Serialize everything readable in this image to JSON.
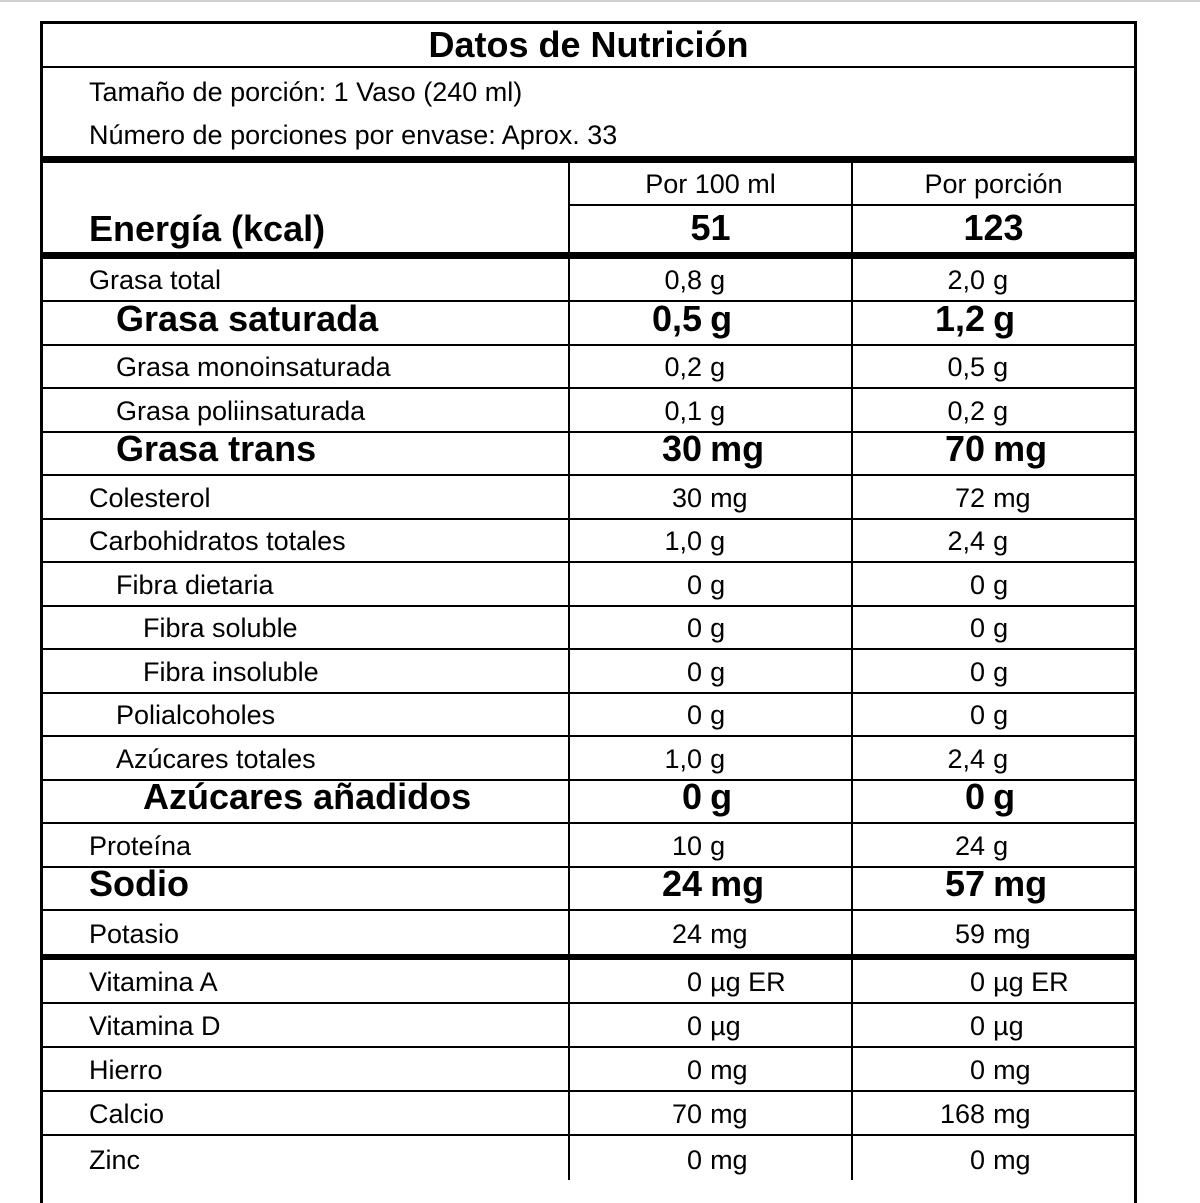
{
  "title": "Datos de Nutrición",
  "serving_size": "Tamaño de porción: 1 Vaso (240 ml)",
  "servings_per_container": "Número de porciones por envase: Aprox. 33",
  "columns": {
    "per100": "Por 100 ml",
    "perserving": "Por porción"
  },
  "energy": {
    "label": "Energía (kcal)",
    "per100": "51",
    "perserving": "123"
  },
  "nutrients": [
    {
      "label": "Grasa total",
      "indent": 0,
      "bold": false,
      "p100": "0,8",
      "u100": "g",
      "pp": "2,0",
      "up": "g"
    },
    {
      "label": "Grasa saturada",
      "indent": 1,
      "bold": true,
      "p100": "0,5",
      "u100": "g",
      "pp": "1,2",
      "up": "g"
    },
    {
      "label": "Grasa monoinsaturada",
      "indent": 1,
      "bold": false,
      "p100": "0,2",
      "u100": "g",
      "pp": "0,5",
      "up": "g"
    },
    {
      "label": "Grasa poliinsaturada",
      "indent": 1,
      "bold": false,
      "p100": "0,1",
      "u100": "g",
      "pp": "0,2",
      "up": "g"
    },
    {
      "label": "Grasa trans",
      "indent": 1,
      "bold": true,
      "p100": "30",
      "u100": "mg",
      "pp": "70",
      "up": "mg"
    },
    {
      "label": "Colesterol",
      "indent": 0,
      "bold": false,
      "p100": "30",
      "u100": "mg",
      "pp": "72",
      "up": "mg"
    },
    {
      "label": "Carbohidratos totales",
      "indent": 0,
      "bold": false,
      "p100": "1,0",
      "u100": "g",
      "pp": "2,4",
      "up": "g"
    },
    {
      "label": "Fibra dietaria",
      "indent": 1,
      "bold": false,
      "p100": "0",
      "u100": "g",
      "pp": "0",
      "up": "g"
    },
    {
      "label": "Fibra soluble",
      "indent": 2,
      "bold": false,
      "p100": "0",
      "u100": "g",
      "pp": "0",
      "up": "g"
    },
    {
      "label": "Fibra insoluble",
      "indent": 2,
      "bold": false,
      "p100": "0",
      "u100": "g",
      "pp": "0",
      "up": "g"
    },
    {
      "label": "Polialcoholes",
      "indent": 1,
      "bold": false,
      "p100": "0",
      "u100": "g",
      "pp": "0",
      "up": "g"
    },
    {
      "label": "Azúcares totales",
      "indent": 1,
      "bold": false,
      "p100": "1,0",
      "u100": "g",
      "pp": "2,4",
      "up": "g"
    },
    {
      "label": "Azúcares añadidos",
      "indent": 2,
      "bold": true,
      "p100": "0",
      "u100": "g",
      "pp": "0",
      "up": "g"
    },
    {
      "label": "Proteína",
      "indent": 0,
      "bold": false,
      "p100": "10",
      "u100": "g",
      "pp": "24",
      "up": "g"
    },
    {
      "label": "Sodio",
      "indent": 0,
      "bold": true,
      "p100": "24",
      "u100": "mg",
      "pp": "57",
      "up": "mg"
    },
    {
      "label": "Potasio",
      "indent": 0,
      "bold": false,
      "p100": "24",
      "u100": "mg",
      "pp": "59",
      "up": "mg"
    }
  ],
  "micronutrients": [
    {
      "label": "Vitamina A",
      "p100": "0",
      "u100": "µg ER",
      "pp": "0",
      "up": "µg ER"
    },
    {
      "label": "Vitamina D",
      "p100": "0",
      "u100": "µg",
      "pp": "0",
      "up": "µg"
    },
    {
      "label": "Hierro",
      "p100": "0",
      "u100": "mg",
      "pp": "0",
      "up": "mg"
    },
    {
      "label": "Calcio",
      "p100": "70",
      "u100": "mg",
      "pp": "168",
      "up": "mg"
    },
    {
      "label": "Zinc",
      "p100": "0",
      "u100": "mg",
      "pp": "0",
      "up": "mg"
    }
  ]
}
